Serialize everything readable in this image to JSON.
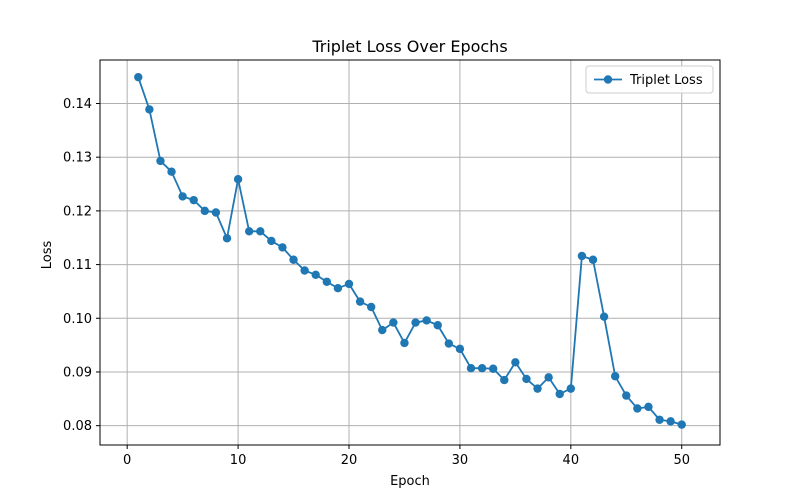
{
  "chart_data": {
    "type": "line",
    "title": "Triplet Loss Over Epochs",
    "xlabel": "Epoch",
    "ylabel": "Loss",
    "xlim": [
      -2.45,
      53.45
    ],
    "ylim": [
      0.0764,
      0.1481
    ],
    "xticks": [
      0,
      10,
      20,
      30,
      40,
      50
    ],
    "xtick_labels": [
      "0",
      "10",
      "20",
      "30",
      "40",
      "50"
    ],
    "yticks": [
      0.08,
      0.09,
      0.1,
      0.11,
      0.12,
      0.13,
      0.14
    ],
    "ytick_labels": [
      "0.08",
      "0.09",
      "0.10",
      "0.11",
      "0.12",
      "0.13",
      "0.14"
    ],
    "grid": true,
    "legend_position": "top-right",
    "series": [
      {
        "name": "Triplet Loss",
        "color": "#1f77b4",
        "marker": "circle",
        "x": [
          1,
          2,
          3,
          4,
          5,
          6,
          7,
          8,
          9,
          10,
          11,
          12,
          13,
          14,
          15,
          16,
          17,
          18,
          19,
          20,
          21,
          22,
          23,
          24,
          25,
          26,
          27,
          28,
          29,
          30,
          31,
          32,
          33,
          34,
          35,
          36,
          37,
          38,
          39,
          40,
          41,
          42,
          43,
          44,
          45,
          46,
          47,
          48,
          49,
          50
        ],
        "y": [
          0.1449,
          0.1389,
          0.1293,
          0.1273,
          0.1227,
          0.122,
          0.12,
          0.1197,
          0.1149,
          0.1259,
          0.1162,
          0.1162,
          0.1144,
          0.1132,
          0.1109,
          0.1089,
          0.1081,
          0.1068,
          0.1056,
          0.1064,
          0.1031,
          0.1021,
          0.0978,
          0.0992,
          0.0954,
          0.0992,
          0.0996,
          0.0987,
          0.0953,
          0.0943,
          0.0907,
          0.0907,
          0.0906,
          0.0885,
          0.0918,
          0.0887,
          0.0869,
          0.089,
          0.0859,
          0.0869,
          0.1116,
          0.1109,
          0.1003,
          0.0892,
          0.0856,
          0.0832,
          0.0835,
          0.0811,
          0.0808,
          0.0802
        ]
      }
    ]
  }
}
